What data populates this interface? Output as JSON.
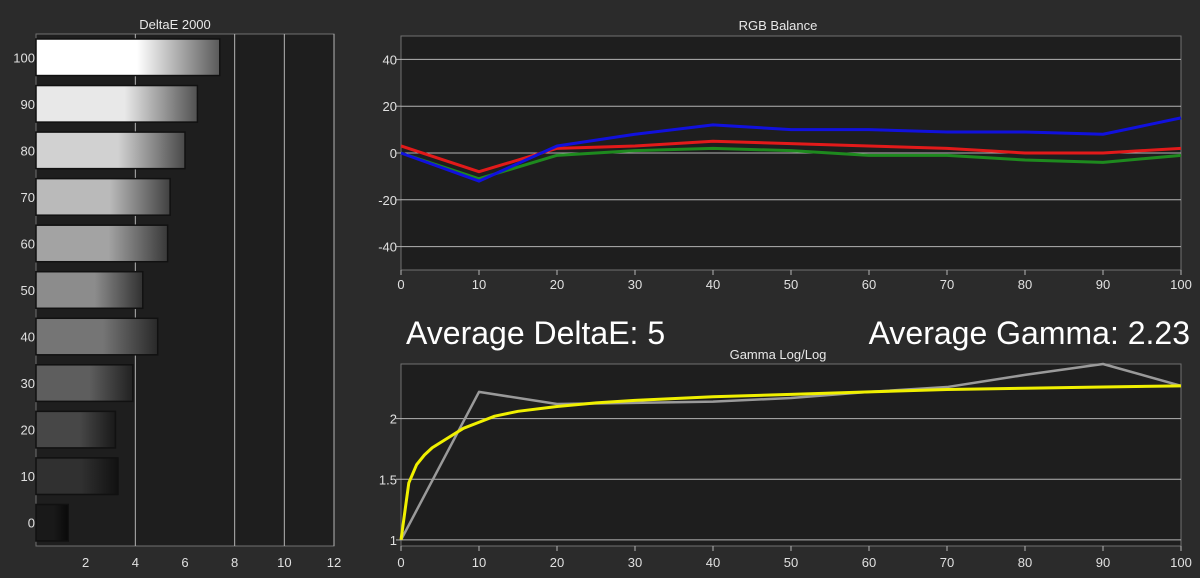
{
  "summary": {
    "avg_delta_e_label": "Average DeltaE: 5",
    "avg_gamma_label": "Average Gamma: 2.23"
  },
  "colors": {
    "background": "#2b2b2b",
    "plot_background": "#1e1e1e",
    "grid": "#b4b4b4",
    "red_series": "#e21a1a",
    "green_series": "#1e8a1e",
    "blue_series": "#1111dd",
    "measured_gamma": "#9a9a9a",
    "target_gamma": "#f0f000"
  },
  "chart_data": [
    {
      "id": "deltae",
      "type": "bar",
      "orientation": "horizontal",
      "title": "DeltaE 2000",
      "categories": [
        "100",
        "90",
        "80",
        "70",
        "60",
        "50",
        "40",
        "30",
        "20",
        "10",
        "0"
      ],
      "values": [
        7.4,
        6.5,
        6.0,
        5.4,
        5.3,
        4.3,
        4.9,
        3.9,
        3.2,
        3.3,
        1.3
      ],
      "xlim": [
        0,
        12
      ],
      "xticks": [
        "2",
        "4",
        "6",
        "8",
        "10",
        "12"
      ],
      "grid": "vertical lines at 4, 8, 10, 12"
    },
    {
      "id": "rgb",
      "type": "line",
      "title": "RGB Balance",
      "x": [
        0,
        10,
        20,
        30,
        40,
        50,
        60,
        70,
        80,
        90,
        100
      ],
      "xticks": [
        "0",
        "10",
        "20",
        "30",
        "40",
        "50",
        "60",
        "70",
        "80",
        "90",
        "100"
      ],
      "yticks": [
        "40",
        "20",
        "0",
        "-20",
        "-40"
      ],
      "ylim": [
        -50,
        50
      ],
      "series": [
        {
          "name": "Green",
          "values": [
            0,
            -11,
            -1,
            1,
            2,
            1,
            -1,
            -1,
            -3,
            -4,
            -1
          ]
        },
        {
          "name": "Red",
          "values": [
            3,
            -8,
            2,
            3,
            5,
            4,
            3,
            2,
            0,
            0,
            2
          ]
        },
        {
          "name": "Blue",
          "values": [
            0,
            -12,
            3,
            8,
            12,
            10,
            10,
            9,
            9,
            8,
            15
          ]
        }
      ]
    },
    {
      "id": "gamma",
      "type": "line",
      "title": "Gamma Log/Log",
      "x_ticks": [
        "0",
        "10",
        "20",
        "30",
        "40",
        "50",
        "60",
        "70",
        "80",
        "90",
        "100"
      ],
      "yticks": [
        "2",
        "1.5",
        "1"
      ],
      "xlim": [
        0,
        100
      ],
      "ylim": [
        0.95,
        2.45
      ],
      "series": [
        {
          "name": "Measured",
          "x": [
            0,
            10,
            20,
            30,
            40,
            50,
            60,
            70,
            80,
            90,
            100
          ],
          "values": [
            1.0,
            2.22,
            2.12,
            2.13,
            2.14,
            2.17,
            2.22,
            2.26,
            2.36,
            2.45,
            2.27
          ]
        },
        {
          "name": "Target",
          "x": [
            0,
            1,
            2,
            3,
            4,
            5,
            6,
            8,
            10,
            12,
            15,
            20,
            25,
            30,
            40,
            50,
            60,
            70,
            80,
            90,
            100
          ],
          "values": [
            1.0,
            1.47,
            1.62,
            1.7,
            1.76,
            1.8,
            1.84,
            1.92,
            1.97,
            2.02,
            2.06,
            2.1,
            2.13,
            2.15,
            2.18,
            2.2,
            2.22,
            2.24,
            2.25,
            2.26,
            2.27
          ]
        }
      ]
    }
  ]
}
